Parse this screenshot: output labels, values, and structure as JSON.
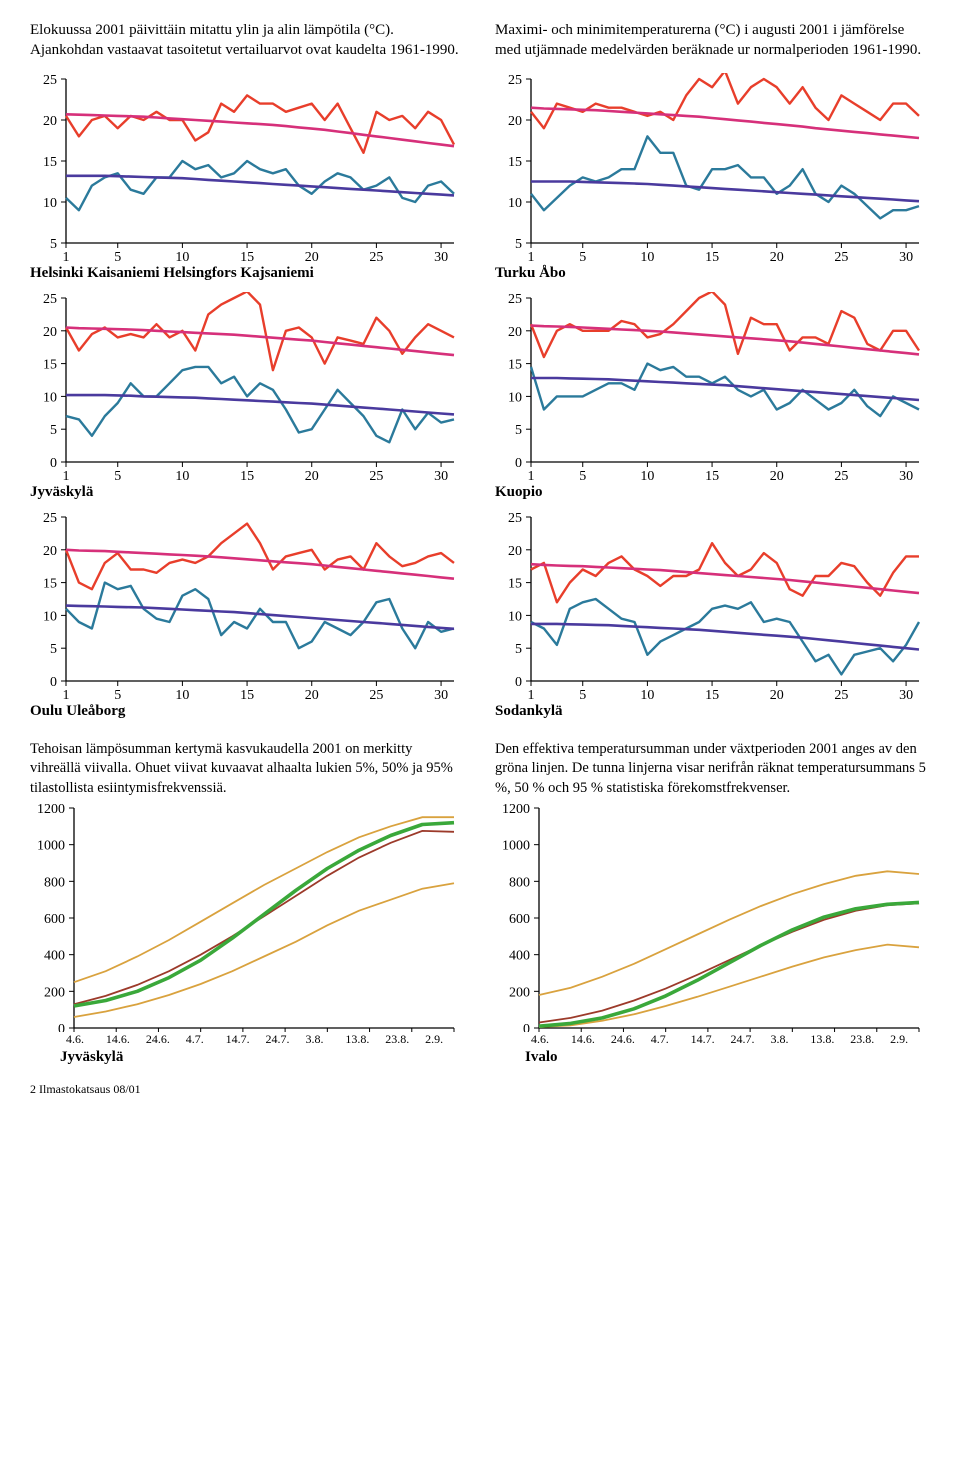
{
  "header": {
    "left": "Elokuussa 2001 päivittäin mitattu ylin ja alin lämpötila (°C). Ajankohdan vastaavat tasoitetut vertailuarvot ovat kaudelta 1961-1990.",
    "right": "Maximi- och minimitemperaturerna (°C) i augusti 2001 i jämförelse med utjämnade medelvärden beräknade ur normalperioden 1961-1990."
  },
  "temp_charts": {
    "colors": {
      "max_line": "#e83e2b",
      "max_trend": "#d6307a",
      "min_line": "#2b7a9b",
      "min_trend": "#4a3a9e",
      "axis": "#000000",
      "bg": "#ffffff"
    },
    "line_width": 2.4,
    "trend_width": 2.6,
    "xlim": [
      1,
      31
    ],
    "xticks": [
      1,
      5,
      10,
      15,
      20,
      25,
      30
    ],
    "panels": [
      {
        "label": "Helsinki Kaisaniemi Helsingfors Kajsaniemi",
        "ylim": [
          5,
          25
        ],
        "yticks": [
          5,
          10,
          15,
          20,
          25
        ],
        "max": [
          20.5,
          18,
          20,
          20.5,
          19,
          20.5,
          20,
          21,
          20,
          20,
          17.5,
          18.5,
          22,
          21,
          23,
          22,
          22,
          21,
          21.5,
          22,
          20,
          22,
          19,
          16,
          21,
          20,
          20.5,
          19,
          21,
          20,
          17
        ],
        "max_trend": [
          20.7,
          20.65,
          20.6,
          20.55,
          20.5,
          20.45,
          20.4,
          20.3,
          20.2,
          20.1,
          20.0,
          19.9,
          19.8,
          19.7,
          19.6,
          19.5,
          19.4,
          19.25,
          19.1,
          18.95,
          18.8,
          18.6,
          18.4,
          18.2,
          18.0,
          17.8,
          17.6,
          17.4,
          17.2,
          17.0,
          16.8
        ],
        "min": [
          10.5,
          9,
          12,
          13,
          13.5,
          11.5,
          11,
          13,
          13,
          15,
          14,
          14.5,
          13,
          13.5,
          15,
          14,
          13.5,
          14,
          12,
          11,
          12.5,
          13.5,
          13,
          11.5,
          12,
          13,
          10.5,
          10,
          12,
          12.5,
          11
        ],
        "min_trend": [
          13.2,
          13.2,
          13.2,
          13.2,
          13.15,
          13.1,
          13.05,
          13.0,
          12.95,
          12.9,
          12.8,
          12.7,
          12.6,
          12.5,
          12.4,
          12.3,
          12.2,
          12.1,
          12.0,
          11.9,
          11.8,
          11.7,
          11.6,
          11.5,
          11.4,
          11.3,
          11.2,
          11.1,
          11.0,
          10.9,
          10.8
        ]
      },
      {
        "label": "Turku Åbo",
        "ylim": [
          5,
          25
        ],
        "yticks": [
          5,
          10,
          15,
          20,
          25
        ],
        "max": [
          21,
          19,
          22,
          21.5,
          21,
          22,
          21.5,
          21.5,
          21,
          20.5,
          21,
          20,
          23,
          25,
          24,
          26,
          22,
          24,
          25,
          24,
          22,
          24,
          21.5,
          20,
          23,
          22,
          21,
          20,
          22,
          22,
          20.5
        ],
        "max_trend": [
          21.5,
          21.4,
          21.35,
          21.3,
          21.25,
          21.2,
          21.1,
          21.0,
          20.9,
          20.8,
          20.7,
          20.6,
          20.5,
          20.4,
          20.25,
          20.1,
          19.95,
          19.8,
          19.65,
          19.5,
          19.35,
          19.2,
          19.0,
          18.85,
          18.7,
          18.55,
          18.4,
          18.25,
          18.1,
          17.95,
          17.8
        ],
        "min": [
          11,
          9,
          10.5,
          12,
          13,
          12.5,
          13,
          14,
          14,
          18,
          16,
          16,
          12,
          11.5,
          14,
          14,
          14.5,
          13,
          13,
          11,
          12,
          14,
          11,
          10,
          12,
          11,
          9.5,
          8,
          9,
          9,
          9.5
        ],
        "min_trend": [
          12.5,
          12.5,
          12.5,
          12.5,
          12.45,
          12.4,
          12.35,
          12.3,
          12.25,
          12.2,
          12.1,
          12.0,
          11.9,
          11.8,
          11.7,
          11.6,
          11.5,
          11.4,
          11.3,
          11.2,
          11.1,
          11.0,
          10.9,
          10.8,
          10.7,
          10.6,
          10.5,
          10.4,
          10.3,
          10.2,
          10.1
        ]
      },
      {
        "label": "Jyväskylä",
        "ylim": [
          0,
          25
        ],
        "yticks": [
          0,
          5,
          10,
          15,
          20,
          25
        ],
        "max": [
          20.5,
          17,
          19.5,
          20.5,
          19,
          19.5,
          19,
          21,
          19,
          20,
          17,
          22.5,
          24,
          25,
          26,
          24,
          14,
          20,
          20.5,
          19,
          15,
          19,
          18.5,
          18,
          22,
          20,
          16.5,
          19,
          21,
          20,
          19
        ],
        "max_trend": [
          20.5,
          20.4,
          20.35,
          20.3,
          20.25,
          20.2,
          20.1,
          20.0,
          19.9,
          19.8,
          19.7,
          19.6,
          19.5,
          19.4,
          19.25,
          19.1,
          18.95,
          18.8,
          18.65,
          18.5,
          18.3,
          18.1,
          17.9,
          17.7,
          17.5,
          17.3,
          17.1,
          16.9,
          16.7,
          16.5,
          16.3
        ],
        "min": [
          7,
          6.5,
          4,
          7,
          9,
          12,
          10,
          10,
          12,
          14,
          14.5,
          14.5,
          12,
          13,
          10,
          12,
          11,
          8,
          4.5,
          5,
          8,
          11,
          9,
          7,
          4,
          3,
          8,
          5,
          7.5,
          6,
          6.5
        ],
        "min_trend": [
          10.2,
          10.2,
          10.2,
          10.2,
          10.15,
          10.1,
          10.0,
          9.95,
          9.9,
          9.85,
          9.8,
          9.7,
          9.6,
          9.5,
          9.4,
          9.3,
          9.2,
          9.1,
          9.0,
          8.9,
          8.75,
          8.6,
          8.45,
          8.3,
          8.15,
          8.0,
          7.85,
          7.7,
          7.55,
          7.4,
          7.25
        ]
      },
      {
        "label": "Kuopio",
        "ylim": [
          0,
          25
        ],
        "yticks": [
          0,
          5,
          10,
          15,
          20,
          25
        ],
        "max": [
          21,
          16,
          20,
          21,
          20,
          20,
          20,
          21.5,
          21,
          19,
          19.5,
          21,
          23,
          25,
          26,
          24,
          16.5,
          22,
          21,
          21,
          17,
          19,
          19,
          18,
          23,
          22,
          18,
          17,
          20,
          20,
          17
        ],
        "max_trend": [
          20.8,
          20.7,
          20.65,
          20.6,
          20.5,
          20.4,
          20.3,
          20.2,
          20.1,
          20.0,
          19.9,
          19.75,
          19.6,
          19.45,
          19.3,
          19.15,
          19.0,
          18.85,
          18.7,
          18.55,
          18.4,
          18.2,
          18.0,
          17.8,
          17.6,
          17.4,
          17.2,
          17.0,
          16.8,
          16.6,
          16.4
        ],
        "min": [
          14.5,
          8,
          10,
          10,
          10,
          11,
          12,
          12,
          11,
          15,
          14,
          14.5,
          13,
          13,
          12,
          13,
          11,
          10,
          11,
          8,
          9,
          11,
          9.5,
          8,
          9,
          11,
          8.5,
          7,
          10,
          9,
          8
        ],
        "min_trend": [
          12.8,
          12.8,
          12.8,
          12.75,
          12.7,
          12.65,
          12.6,
          12.5,
          12.4,
          12.3,
          12.2,
          12.1,
          12.0,
          11.9,
          11.8,
          11.7,
          11.55,
          11.4,
          11.25,
          11.1,
          10.95,
          10.8,
          10.65,
          10.5,
          10.35,
          10.2,
          10.05,
          9.9,
          9.75,
          9.6,
          9.45
        ]
      },
      {
        "label": "Oulu Uleåborg",
        "ylim": [
          0,
          25
        ],
        "yticks": [
          0,
          5,
          10,
          15,
          20,
          25
        ],
        "max": [
          20,
          15,
          14,
          18,
          19.5,
          17,
          17,
          16.5,
          18,
          18.5,
          18,
          19,
          21,
          22.5,
          24,
          21,
          17,
          19,
          19.5,
          20,
          17,
          18.5,
          19,
          17,
          21,
          19,
          17.5,
          18,
          19,
          19.5,
          18
        ],
        "max_trend": [
          20.0,
          19.9,
          19.85,
          19.8,
          19.7,
          19.6,
          19.5,
          19.4,
          19.3,
          19.2,
          19.1,
          19.0,
          18.85,
          18.7,
          18.55,
          18.4,
          18.25,
          18.1,
          17.95,
          17.8,
          17.6,
          17.4,
          17.2,
          17.0,
          16.8,
          16.6,
          16.4,
          16.2,
          16.0,
          15.8,
          15.6
        ],
        "min": [
          11,
          9,
          8,
          15,
          14,
          14.5,
          11,
          9.5,
          9,
          13,
          14,
          12.5,
          7,
          9,
          8,
          11,
          9,
          9,
          5,
          6,
          9,
          8,
          7,
          9,
          12,
          12.5,
          8,
          5,
          9,
          7.5,
          8
        ],
        "min_trend": [
          11.5,
          11.45,
          11.4,
          11.35,
          11.3,
          11.25,
          11.2,
          11.1,
          11.0,
          10.9,
          10.8,
          10.7,
          10.6,
          10.5,
          10.35,
          10.2,
          10.05,
          9.9,
          9.75,
          9.6,
          9.45,
          9.3,
          9.15,
          9.0,
          8.85,
          8.7,
          8.55,
          8.4,
          8.25,
          8.1,
          7.95
        ]
      },
      {
        "label": "Sodankylä",
        "ylim": [
          0,
          25
        ],
        "yticks": [
          0,
          5,
          10,
          15,
          20,
          25
        ],
        "max": [
          17,
          18,
          12,
          15,
          17,
          16,
          18,
          19,
          17,
          16,
          14.5,
          16,
          16,
          17,
          21,
          18,
          16,
          17,
          19.5,
          18,
          14,
          13,
          16,
          16,
          18,
          17.5,
          15,
          13,
          16.5,
          19,
          19
        ],
        "max_trend": [
          17.8,
          17.7,
          17.6,
          17.55,
          17.5,
          17.4,
          17.3,
          17.2,
          17.1,
          17.0,
          16.9,
          16.75,
          16.6,
          16.45,
          16.3,
          16.15,
          16.0,
          15.85,
          15.7,
          15.55,
          15.4,
          15.2,
          15.0,
          14.8,
          14.6,
          14.4,
          14.2,
          14.0,
          13.8,
          13.6,
          13.4
        ],
        "min": [
          9,
          8,
          5.5,
          11,
          12,
          12.5,
          11,
          9.5,
          9,
          4,
          6,
          7,
          8,
          9,
          11,
          11.5,
          11,
          12,
          9,
          9.5,
          9,
          6,
          3,
          4,
          1,
          4,
          4.5,
          5,
          3,
          5.5,
          9
        ],
        "min_trend": [
          8.7,
          8.7,
          8.7,
          8.65,
          8.6,
          8.55,
          8.5,
          8.4,
          8.3,
          8.2,
          8.1,
          8.0,
          7.9,
          7.8,
          7.65,
          7.5,
          7.35,
          7.2,
          7.05,
          6.9,
          6.75,
          6.6,
          6.4,
          6.2,
          6.0,
          5.8,
          5.6,
          5.4,
          5.2,
          5.0,
          4.8
        ]
      }
    ]
  },
  "tempsum": {
    "left_text": "Tehoisan lämpösumman kertymä kasvukaudella 2001 on merkitty vihreällä viivalla. Ohuet viivat kuvaavat alhaalta lukien 5%, 50% ja 95% tilastollista esiintymisfrekvenssiä.",
    "right_text": "Den effektiva temperatursumman under växtperioden 2001 anges av den gröna linjen. De tunna linjerna visar nerifrån räknat temperatursummans 5 %, 50 % och 95 % statistiska förekomstfrekvenser.",
    "colors": {
      "p5": "#d9a23e",
      "p50": "#9c3a2a",
      "p95": "#d9a23e",
      "actual": "#3aa83a",
      "axis": "#000000"
    },
    "xlabels": [
      "4.6.",
      "14.6.",
      "24.6.",
      "4.7.",
      "14.7.",
      "24.7.",
      "3.8.",
      "13.8.",
      "23.8.",
      "2.9."
    ],
    "ylim": [
      0,
      1200
    ],
    "yticks": [
      0,
      200,
      400,
      600,
      800,
      1000,
      1200
    ],
    "panels": [
      {
        "label": "Jyväskylä",
        "p5": [
          60,
          90,
          130,
          180,
          240,
          310,
          390,
          470,
          560,
          640,
          700,
          760,
          790
        ],
        "p50": [
          130,
          175,
          235,
          310,
          400,
          500,
          610,
          720,
          830,
          930,
          1010,
          1075,
          1070
        ],
        "p95": [
          250,
          310,
          390,
          480,
          580,
          680,
          780,
          870,
          960,
          1040,
          1100,
          1150,
          1150
        ],
        "actual": [
          120,
          150,
          200,
          275,
          370,
          490,
          620,
          750,
          870,
          970,
          1050,
          1110,
          1120
        ]
      },
      {
        "label": "Ivalo",
        "p5": [
          5,
          15,
          40,
          75,
          120,
          170,
          225,
          280,
          335,
          385,
          425,
          455,
          440
        ],
        "p50": [
          30,
          55,
          95,
          150,
          215,
          290,
          370,
          450,
          525,
          590,
          640,
          670,
          680
        ],
        "p95": [
          180,
          220,
          280,
          350,
          430,
          510,
          590,
          665,
          730,
          785,
          830,
          855,
          840
        ],
        "actual": [
          10,
          25,
          55,
          105,
          175,
          260,
          355,
          450,
          535,
          605,
          650,
          675,
          685
        ]
      }
    ]
  },
  "footer": "2   Ilmastokatsaus 08/01"
}
